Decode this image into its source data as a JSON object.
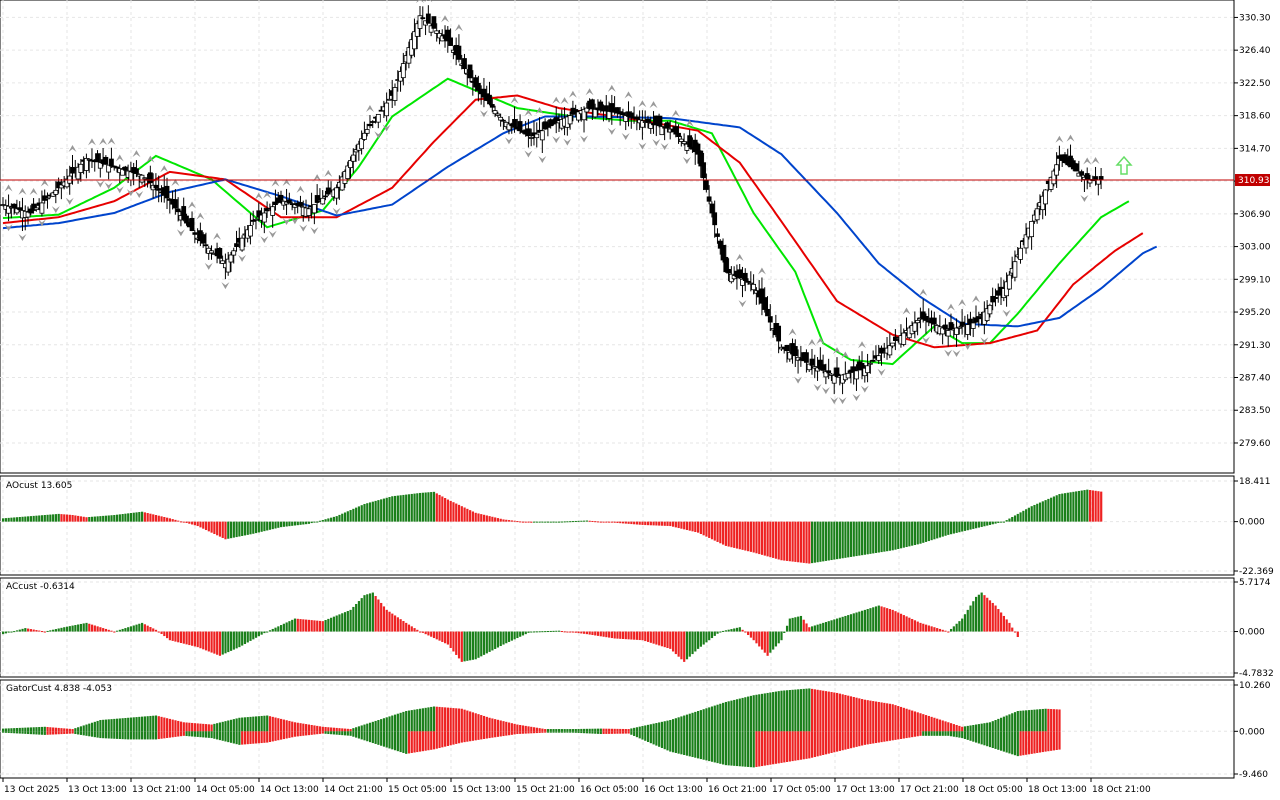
{
  "chart_data": [
    {
      "type": "candlestick",
      "last_price": "310.93",
      "y_ticks": [
        "330.30",
        "326.40",
        "322.50",
        "318.60",
        "314.70",
        "310.80",
        "306.90",
        "303.00",
        "299.10",
        "295.20",
        "291.30",
        "287.40",
        "283.50",
        "279.60"
      ],
      "ylim": [
        276.5,
        331.9
      ],
      "price_line": 310.93,
      "grid": true,
      "anchors_close": [
        [
          0,
          308.0
        ],
        [
          10,
          307.0
        ],
        [
          20,
          310.0
        ],
        [
          30,
          313.5
        ],
        [
          40,
          312.5
        ],
        [
          50,
          311.5
        ],
        [
          60,
          308.5
        ],
        [
          70,
          304.0
        ],
        [
          80,
          301.0
        ],
        [
          90,
          306.0
        ],
        [
          100,
          308.5
        ],
        [
          110,
          307.5
        ],
        [
          120,
          310.0
        ],
        [
          130,
          316.5
        ],
        [
          140,
          321.0
        ],
        [
          150,
          330.5
        ],
        [
          160,
          327.5
        ],
        [
          170,
          322.0
        ],
        [
          180,
          318.0
        ],
        [
          190,
          316.0
        ],
        [
          200,
          318.0
        ],
        [
          210,
          319.5
        ],
        [
          220,
          319.0
        ],
        [
          230,
          318.0
        ],
        [
          240,
          317.0
        ],
        [
          250,
          314.0
        ],
        [
          260,
          300.0
        ],
        [
          270,
          298.5
        ],
        [
          280,
          291.0
        ],
        [
          290,
          289.0
        ],
        [
          300,
          287.5
        ],
        [
          310,
          288.5
        ],
        [
          320,
          291.5
        ],
        [
          330,
          294.5
        ],
        [
          340,
          293.0
        ],
        [
          350,
          294.0
        ],
        [
          360,
          298.0
        ],
        [
          370,
          306.0
        ],
        [
          380,
          313.5
        ],
        [
          390,
          311.0
        ],
        [
          395,
          310.93
        ]
      ],
      "ma_lines": [
        {
          "color": "#00e600",
          "anchors": [
            [
              0,
              306.4
            ],
            [
              20,
              306.8
            ],
            [
              40,
              310.0
            ],
            [
              55,
              313.8
            ],
            [
              75,
              311.0
            ],
            [
              95,
              305.3
            ],
            [
              115,
              307.3
            ],
            [
              128,
              312.5
            ],
            [
              140,
              318.5
            ],
            [
              160,
              323.0
            ],
            [
              185,
              319.5
            ],
            [
              205,
              318.5
            ],
            [
              225,
              318.0
            ],
            [
              240,
              318.0
            ],
            [
              255,
              316.5
            ],
            [
              270,
              307.0
            ],
            [
              285,
              300.0
            ],
            [
              295,
              291.5
            ],
            [
              305,
              289.5
            ],
            [
              320,
              289.0
            ],
            [
              335,
              293.5
            ],
            [
              345,
              291.5
            ],
            [
              355,
              291.5
            ],
            [
              365,
              295.0
            ],
            [
              380,
              301.0
            ],
            [
              395,
              306.5
            ],
            [
              405,
              308.4
            ]
          ]
        },
        {
          "color": "#e60000",
          "anchors": [
            [
              0,
              305.8
            ],
            [
              20,
              306.5
            ],
            [
              40,
              308.4
            ],
            [
              60,
              311.9
            ],
            [
              80,
              311.0
            ],
            [
              100,
              306.5
            ],
            [
              120,
              306.5
            ],
            [
              140,
              310.0
            ],
            [
              155,
              315.5
            ],
            [
              170,
              320.5
            ],
            [
              185,
              321.0
            ],
            [
              200,
              319.5
            ],
            [
              230,
              318.0
            ],
            [
              250,
              316.8
            ],
            [
              265,
              313.0
            ],
            [
              280,
              306.0
            ],
            [
              300,
              296.5
            ],
            [
              320,
              292.5
            ],
            [
              335,
              291.0
            ],
            [
              355,
              291.5
            ],
            [
              372,
              293.0
            ],
            [
              385,
              298.5
            ],
            [
              400,
              302.5
            ],
            [
              410,
              304.6
            ]
          ]
        },
        {
          "color": "#0044cc",
          "anchors": [
            [
              0,
              305.2
            ],
            [
              20,
              305.8
            ],
            [
              40,
              307.0
            ],
            [
              60,
              309.5
            ],
            [
              80,
              311.0
            ],
            [
              100,
              309.0
            ],
            [
              120,
              306.7
            ],
            [
              140,
              308.0
            ],
            [
              160,
              312.5
            ],
            [
              180,
              316.5
            ],
            [
              195,
              318.5
            ],
            [
              210,
              318.5
            ],
            [
              240,
              318.3
            ],
            [
              265,
              317.2
            ],
            [
              280,
              314.0
            ],
            [
              300,
              307.0
            ],
            [
              315,
              301.0
            ],
            [
              330,
              297.0
            ],
            [
              345,
              293.8
            ],
            [
              365,
              293.5
            ],
            [
              380,
              294.5
            ],
            [
              395,
              298.0
            ],
            [
              410,
              302.2
            ],
            [
              415,
              303.0
            ]
          ]
        }
      ]
    },
    {
      "type": "bar",
      "name": "AOcust 13.605",
      "y_ticks": [
        "18.411",
        "0.000",
        "-22.369"
      ],
      "ylim": [
        -22.369,
        18.411
      ],
      "anchors": [
        [
          0,
          1.5
        ],
        [
          10,
          2.5
        ],
        [
          20,
          3.5
        ],
        [
          25,
          3.0
        ],
        [
          30,
          2.0
        ],
        [
          40,
          3.0
        ],
        [
          50,
          4.5
        ],
        [
          60,
          1.5
        ],
        [
          70,
          -2.0
        ],
        [
          80,
          -8.0
        ],
        [
          90,
          -5.5
        ],
        [
          100,
          -2.5
        ],
        [
          110,
          -1.0
        ],
        [
          120,
          2.5
        ],
        [
          130,
          8.0
        ],
        [
          140,
          11.5
        ],
        [
          150,
          13.0
        ],
        [
          155,
          13.5
        ],
        [
          160,
          10.0
        ],
        [
          170,
          4.0
        ],
        [
          180,
          1.0
        ],
        [
          190,
          -0.5
        ],
        [
          200,
          0.0
        ],
        [
          210,
          0.5
        ],
        [
          220,
          -0.5
        ],
        [
          230,
          -1.5
        ],
        [
          240,
          -2.0
        ],
        [
          250,
          -5.0
        ],
        [
          260,
          -11.0
        ],
        [
          270,
          -14.0
        ],
        [
          280,
          -17.5
        ],
        [
          290,
          -19.0
        ],
        [
          300,
          -17.0
        ],
        [
          310,
          -15.0
        ],
        [
          320,
          -13.0
        ],
        [
          330,
          -10.0
        ],
        [
          340,
          -6.0
        ],
        [
          350,
          -3.0
        ],
        [
          360,
          0.0
        ],
        [
          370,
          7.0
        ],
        [
          380,
          12.5
        ],
        [
          390,
          14.5
        ],
        [
          395,
          13.605
        ]
      ],
      "value_label": "13.605"
    },
    {
      "type": "bar",
      "name": "ACcust -0.6314",
      "y_ticks": [
        "5.7174",
        "0.000",
        "-4.7832"
      ],
      "ylim": [
        -4.7832,
        5.7174
      ],
      "anchors": [
        [
          0,
          -0.3
        ],
        [
          8,
          0.4
        ],
        [
          15,
          0.0
        ],
        [
          22,
          0.5
        ],
        [
          30,
          1.0
        ],
        [
          40,
          0.0
        ],
        [
          50,
          1.0
        ],
        [
          55,
          0.2
        ],
        [
          60,
          -1.0
        ],
        [
          70,
          -1.8
        ],
        [
          78,
          -2.8
        ],
        [
          85,
          -1.8
        ],
        [
          95,
          0.0
        ],
        [
          105,
          1.5
        ],
        [
          115,
          1.2
        ],
        [
          125,
          2.5
        ],
        [
          130,
          4.2
        ],
        [
          133,
          4.5
        ],
        [
          138,
          2.5
        ],
        [
          145,
          1.0
        ],
        [
          150,
          0.0
        ],
        [
          160,
          -1.5
        ],
        [
          165,
          -3.5
        ],
        [
          170,
          -3.2
        ],
        [
          180,
          -1.5
        ],
        [
          190,
          0.0
        ],
        [
          200,
          0.1
        ],
        [
          210,
          -0.3
        ],
        [
          220,
          -0.8
        ],
        [
          230,
          -1.0
        ],
        [
          240,
          -2.0
        ],
        [
          245,
          -3.5
        ],
        [
          250,
          -2.0
        ],
        [
          258,
          0.0
        ],
        [
          265,
          0.5
        ],
        [
          270,
          -1.0
        ],
        [
          275,
          -2.8
        ],
        [
          280,
          -1.0
        ],
        [
          283,
          1.5
        ],
        [
          287,
          1.8
        ],
        [
          290,
          0.5
        ],
        [
          300,
          1.5
        ],
        [
          310,
          2.5
        ],
        [
          315,
          3.0
        ],
        [
          320,
          2.5
        ],
        [
          330,
          1.0
        ],
        [
          340,
          0.0
        ],
        [
          345,
          1.5
        ],
        [
          350,
          4.0
        ],
        [
          352,
          4.5
        ],
        [
          357,
          3.0
        ],
        [
          362,
          1.0
        ],
        [
          365,
          -0.63
        ]
      ],
      "value_label": "-0.6314"
    },
    {
      "type": "bar",
      "name": "GatorCust 4.838 -4.053",
      "y_ticks": [
        "10.260",
        "0.000",
        "-9.460"
      ],
      "ylim": [
        -9.46,
        10.26
      ],
      "upper": [
        [
          0,
          0.6
        ],
        [
          15,
          1.0
        ],
        [
          25,
          0.5
        ],
        [
          35,
          2.5
        ],
        [
          45,
          3.0
        ],
        [
          55,
          3.5
        ],
        [
          65,
          2.0
        ],
        [
          75,
          1.5
        ],
        [
          85,
          3.0
        ],
        [
          95,
          3.5
        ],
        [
          105,
          2.0
        ],
        [
          115,
          1.0
        ],
        [
          125,
          0.5
        ],
        [
          135,
          2.5
        ],
        [
          145,
          4.5
        ],
        [
          155,
          5.5
        ],
        [
          165,
          5.0
        ],
        [
          175,
          3.0
        ],
        [
          185,
          1.5
        ],
        [
          195,
          0.5
        ],
        [
          205,
          0.5
        ],
        [
          215,
          0.6
        ],
        [
          225,
          0.5
        ],
        [
          240,
          2.5
        ],
        [
          250,
          4.5
        ],
        [
          260,
          6.5
        ],
        [
          270,
          8.0
        ],
        [
          280,
          9.0
        ],
        [
          290,
          9.5
        ],
        [
          300,
          8.5
        ],
        [
          310,
          7.0
        ],
        [
          320,
          6.0
        ],
        [
          330,
          4.0
        ],
        [
          340,
          2.0
        ],
        [
          345,
          1.0
        ],
        [
          355,
          2.0
        ],
        [
          365,
          4.5
        ],
        [
          375,
          5.0
        ],
        [
          380,
          4.838
        ]
      ],
      "lower": [
        [
          0,
          -0.3
        ],
        [
          15,
          -0.8
        ],
        [
          25,
          -0.5
        ],
        [
          35,
          -1.5
        ],
        [
          45,
          -1.8
        ],
        [
          55,
          -1.8
        ],
        [
          65,
          -1.0
        ],
        [
          75,
          -1.5
        ],
        [
          85,
          -3.0
        ],
        [
          95,
          -2.5
        ],
        [
          105,
          -1.2
        ],
        [
          115,
          -0.5
        ],
        [
          125,
          -1.0
        ],
        [
          135,
          -3.0
        ],
        [
          145,
          -5.0
        ],
        [
          155,
          -4.0
        ],
        [
          165,
          -2.5
        ],
        [
          175,
          -1.5
        ],
        [
          185,
          -0.6
        ],
        [
          195,
          -0.3
        ],
        [
          205,
          -0.3
        ],
        [
          215,
          -0.6
        ],
        [
          225,
          -0.5
        ],
        [
          240,
          -4.5
        ],
        [
          250,
          -6.0
        ],
        [
          260,
          -7.5
        ],
        [
          270,
          -8.0
        ],
        [
          280,
          -7.0
        ],
        [
          290,
          -6.0
        ],
        [
          300,
          -4.5
        ],
        [
          310,
          -3.0
        ],
        [
          320,
          -2.0
        ],
        [
          330,
          -1.0
        ],
        [
          340,
          -1.0
        ],
        [
          345,
          -1.5
        ],
        [
          355,
          -3.5
        ],
        [
          365,
          -5.5
        ],
        [
          375,
          -4.5
        ],
        [
          380,
          -4.053
        ]
      ],
      "value_label": "4.838 -4.053"
    }
  ],
  "x_ticks": [
    "13 Oct 2025",
    "13 Oct 13:00",
    "13 Oct 21:00",
    "14 Oct 05:00",
    "14 Oct 13:00",
    "14 Oct 21:00",
    "15 Oct 05:00",
    "15 Oct 13:00",
    "15 Oct 21:00",
    "16 Oct 05:00",
    "16 Oct 13:00",
    "16 Oct 21:00",
    "17 Oct 05:00",
    "17 Oct 13:00",
    "17 Oct 21:00",
    "18 Oct 05:00",
    "18 Oct 13:00",
    "18 Oct 21:00"
  ],
  "colors": {
    "bull_bar": "#1a7f1a",
    "bear_bar": "#ee2222",
    "grid": "#e6e6e6",
    "price_line": "#c00000",
    "price_label_bg": "#c00000",
    "fractal": "#999999",
    "signal_arrow": "#66dd66"
  }
}
